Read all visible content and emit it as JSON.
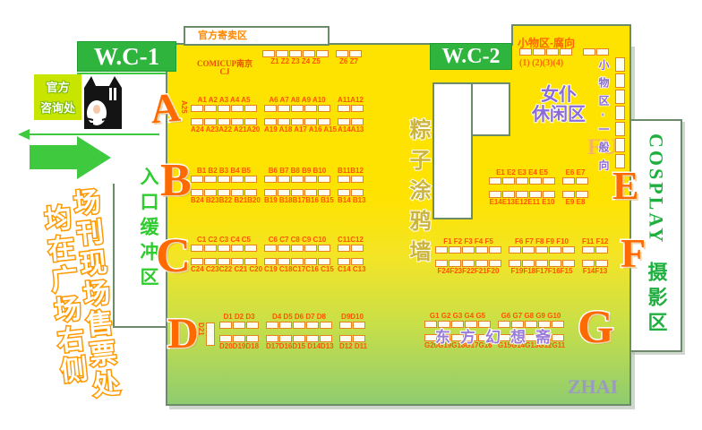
{
  "legend": {
    "wc1": "W.C-1",
    "wc2": "W.C-2",
    "consign_title": "官方寄卖区",
    "comicup_line1": "COMICUP南京",
    "comicup_line2": "CJ",
    "info_line1": "官方",
    "info_line2": "咨询处",
    "entrance_buffer": "入口缓冲区",
    "ticket_col_right": "场刊现场售票处",
    "ticket_col_left": "均在广场右侧",
    "graffiti_wall": "粽子涂鸦墙",
    "maid_line1": "女仆",
    "maid_line2": "休闲区",
    "small_goods_fu": "小物区-腐向",
    "small_goods_fu_nums": "(1) (2)(3)(4)",
    "small_goods_general": "小物区-一般向",
    "cosplay_en": "COSPLAY",
    "cosplay_cn": "摄影区",
    "fu_watermark": "FU",
    "zhai_watermark": "ZHAI",
    "touhou_area": "东方幻想斋"
  },
  "colors": {
    "hall_yellow": "#FFE300",
    "hall_green": "#8FCC70",
    "hall_border": "#6B8B6B",
    "wc_green": "#2FB53E",
    "booth_border": "#E8821E",
    "booth_label_orange": "#FF5400",
    "big_letter_orange": "#FF6A00",
    "purple": "#8B6BD8",
    "lime_info": "#C8E500",
    "ticket_outline": "#FF9900",
    "wall_text": "#CDB53C"
  },
  "small_goods": {
    "fu_cells_a": 4,
    "fu_cells_b": 2,
    "general_column_cells": 7,
    "consign_cells": 4
  },
  "booth_rows": [
    {
      "id": "A",
      "side_label": "A25",
      "top": [
        {
          "label": "A1 A2 A3 A4 A5",
          "cells": 5
        },
        {
          "label": "A6 A7 A8 A9 A10",
          "cells": 5
        },
        {
          "label": "A11A12",
          "cells": 2
        }
      ],
      "bottom": [
        {
          "label": "A24 A23A22 A21A20",
          "cells": 5
        },
        {
          "label": "A19 A18 A17 A16 A15",
          "cells": 5
        },
        {
          "label": "A14A13",
          "cells": 2
        }
      ]
    },
    {
      "id": "B",
      "side_label": "",
      "top": [
        {
          "label": "B1 B2 B3 B4 B5",
          "cells": 5
        },
        {
          "label": "B6 B7 B8 B9 B10",
          "cells": 5
        },
        {
          "label": "B11B12",
          "cells": 2
        }
      ],
      "bottom": [
        {
          "label": "B24 B23B22 B21B20",
          "cells": 5
        },
        {
          "label": "B19 B18B17B16 B15",
          "cells": 5
        },
        {
          "label": "B14 B13",
          "cells": 2
        }
      ]
    },
    {
      "id": "C",
      "side_label": "",
      "top": [
        {
          "label": "C1 C2 C3 C4 C5",
          "cells": 5
        },
        {
          "label": "C6 C7 C8 C9 C10",
          "cells": 5
        },
        {
          "label": "C11C12",
          "cells": 2
        }
      ],
      "bottom": [
        {
          "label": "C24 C23C22 C21 C20",
          "cells": 5
        },
        {
          "label": "C19 C18C17C16 C15",
          "cells": 5
        },
        {
          "label": "C14 C13",
          "cells": 2
        }
      ]
    },
    {
      "id": "D",
      "side_label": "D21",
      "top": [
        {
          "label": "D1 D2 D3",
          "cells": 3
        },
        {
          "label": "D4 D5 D6 D7 D8",
          "cells": 5
        },
        {
          "label": "D9D10",
          "cells": 2
        }
      ],
      "bottom": [
        {
          "label": "D20D19D18",
          "cells": 3
        },
        {
          "label": "D17D16D15 D14D13",
          "cells": 5
        },
        {
          "label": "D12 D11",
          "cells": 2
        }
      ]
    },
    {
      "id": "E",
      "side_label": "",
      "top": [
        {
          "label": "E1 E2 E3 E4 E5",
          "cells": 5
        },
        {
          "label": "E6 E7",
          "cells": 2
        }
      ],
      "bottom": [
        {
          "label": "E14E13E12E11 E10",
          "cells": 5
        },
        {
          "label": "E9 E8",
          "cells": 2
        }
      ]
    },
    {
      "id": "F",
      "side_label": "",
      "top": [
        {
          "label": "F1 F2 F3 F4 F5",
          "cells": 5
        },
        {
          "label": "F6 F7 F8 F9 F10",
          "cells": 5
        },
        {
          "label": "F11 F12",
          "cells": 2
        }
      ],
      "bottom": [
        {
          "label": "F24F23F22F21F20",
          "cells": 5
        },
        {
          "label": "F19F18F17F16F15",
          "cells": 5
        },
        {
          "label": "F14F13",
          "cells": 2
        }
      ]
    },
    {
      "id": "G",
      "side_label": "",
      "top": [
        {
          "label": "G1 G2 G3 G4 G5",
          "cells": 5
        },
        {
          "label": "G6 G7 G8 G9 G10",
          "cells": 5
        }
      ],
      "bottom": [
        {
          "label": "G20G19G18G17G16",
          "cells": 5
        },
        {
          "label": "G15G14G13G12G11",
          "cells": 5
        }
      ]
    },
    {
      "id": "Z",
      "layout": "cells-first",
      "side_label": "",
      "top": [
        {
          "label": "Z1 Z2 Z3 Z4 Z5",
          "cells": 5
        },
        {
          "label": "Z6 Z7",
          "cells": 2
        }
      ],
      "bottom": []
    }
  ]
}
